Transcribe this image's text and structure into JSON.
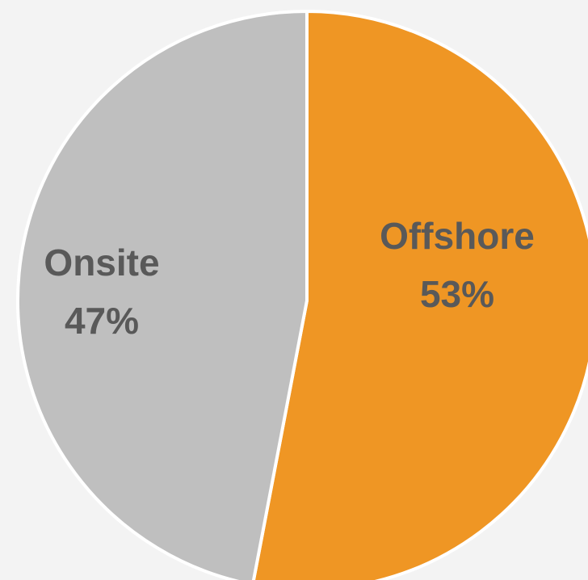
{
  "chart_data": {
    "type": "pie",
    "title": "",
    "slices": [
      {
        "label": "Offshore",
        "value": 53,
        "value_label": "53%",
        "color": "#ef9624"
      },
      {
        "label": "Onsite",
        "value": 47,
        "value_label": "47%",
        "color": "#bfbfbf"
      }
    ],
    "start_angle_deg": 0,
    "direction": "clockwise",
    "legend": "none"
  }
}
